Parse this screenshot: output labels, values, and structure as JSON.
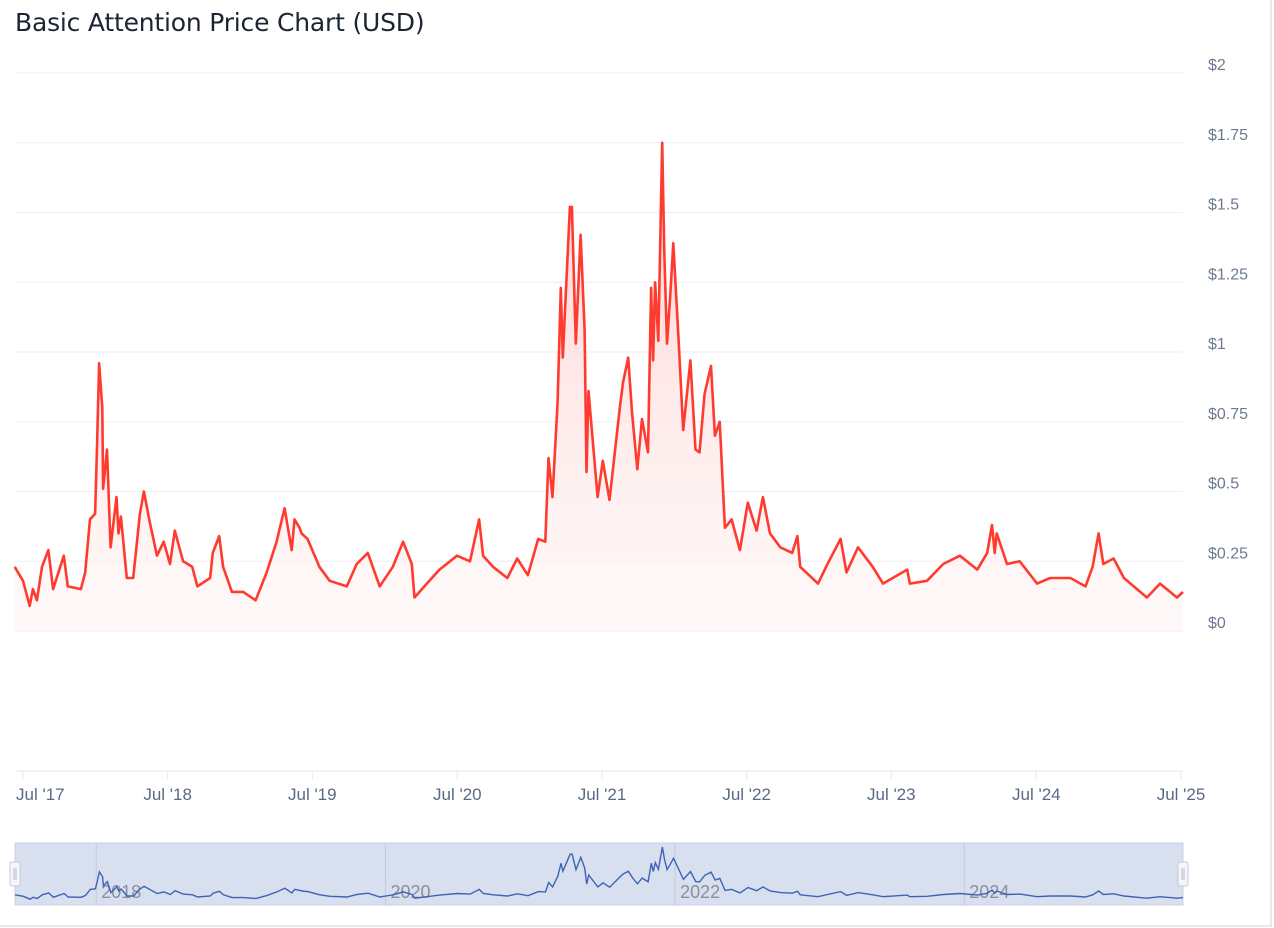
{
  "title": "Basic Attention Price Chart (USD)",
  "chart_data": {
    "type": "area",
    "title": "Basic Attention Price Chart (USD)",
    "xlabel": "",
    "ylabel": "",
    "ylim": [
      0,
      2
    ],
    "xlim": [
      "2017-06-10",
      "2025-07-06"
    ],
    "grid": true,
    "y_ticks": [
      "$0",
      "$0.25",
      "$0.5",
      "$0.75",
      "$1",
      "$1.25",
      "$1.5",
      "$1.75",
      "$2"
    ],
    "y_tick_values": [
      0,
      0.25,
      0.5,
      0.75,
      1,
      1.25,
      1.5,
      1.75,
      2
    ],
    "x_ticks": [
      "Jul '17",
      "Jul '18",
      "Jul '19",
      "Jul '20",
      "Jul '21",
      "Jul '22",
      "Jul '23",
      "Jul '24",
      "Jul '25"
    ],
    "x_tick_dates": [
      "2017-07-01",
      "2018-07-01",
      "2019-07-01",
      "2020-07-01",
      "2021-07-01",
      "2022-07-01",
      "2023-07-01",
      "2024-07-01",
      "2025-07-01"
    ],
    "line_color": "#ff3b30",
    "fill_color": "#ffd9d9",
    "navigator": {
      "labels": [
        "2018",
        "2020",
        "2022",
        "2024"
      ],
      "label_dates": [
        "2018-01-01",
        "2020-01-01",
        "2022-01-01",
        "2024-01-01"
      ],
      "line_color": "#3d63b8",
      "background": "#d8dfee"
    },
    "series": [
      {
        "x": [
          "2017-06-10",
          "2017-07-01",
          "2017-07-18",
          "2017-07-26",
          "2017-08-05",
          "2017-08-18",
          "2017-09-03",
          "2017-09-15",
          "2017-10-12",
          "2017-10-22",
          "2017-11-24",
          "2017-12-05",
          "2017-12-17",
          "2017-12-30",
          "2018-01-04",
          "2018-01-09",
          "2018-01-17",
          "2018-01-19",
          "2018-01-29",
          "2018-02-07",
          "2018-02-22",
          "2018-02-27",
          "2018-03-05",
          "2018-03-20",
          "2018-04-05",
          "2018-04-22",
          "2018-05-02",
          "2018-05-17",
          "2018-06-04",
          "2018-06-21",
          "2018-07-07",
          "2018-07-19",
          "2018-08-09",
          "2018-09-01",
          "2018-09-14",
          "2018-10-16",
          "2018-10-23",
          "2018-11-08",
          "2018-11-18",
          "2018-12-10",
          "2019-01-08",
          "2019-02-08",
          "2019-03-08",
          "2019-04-02",
          "2019-04-22",
          "2019-05-10",
          "2019-05-17",
          "2019-05-30",
          "2019-06-04",
          "2019-06-19",
          "2019-07-19",
          "2019-08-14",
          "2019-09-26",
          "2019-10-21",
          "2019-11-18",
          "2019-12-18",
          "2020-01-20",
          "2020-02-15",
          "2020-03-08",
          "2020-03-15",
          "2020-04-15",
          "2020-05-17",
          "2020-06-30",
          "2020-08-02",
          "2020-08-25",
          "2020-09-04",
          "2020-09-29",
          "2020-11-04",
          "2020-11-29",
          "2020-12-26",
          "2021-01-21",
          "2021-02-08",
          "2021-02-16",
          "2021-02-26",
          "2021-03-11",
          "2021-03-19",
          "2021-03-24",
          "2021-04-11",
          "2021-04-16",
          "2021-04-26",
          "2021-05-08",
          "2021-05-18",
          "2021-05-23",
          "2021-05-28",
          "2021-06-20",
          "2021-07-03",
          "2021-07-20",
          "2021-08-15",
          "2021-08-23",
          "2021-09-05",
          "2021-09-15",
          "2021-09-28",
          "2021-10-10",
          "2021-10-25",
          "2021-11-02",
          "2021-11-07",
          "2021-11-12",
          "2021-11-20",
          "2021-11-30",
          "2021-12-05",
          "2021-12-12",
          "2021-12-20",
          "2021-12-28",
          "2022-01-10",
          "2022-01-22",
          "2022-02-09",
          "2022-02-22",
          "2022-03-04",
          "2022-03-17",
          "2022-04-02",
          "2022-04-12",
          "2022-04-24",
          "2022-05-07",
          "2022-05-24",
          "2022-06-14",
          "2022-07-04",
          "2022-07-26",
          "2022-08-11",
          "2022-08-29",
          "2022-09-24",
          "2022-10-24",
          "2022-11-06",
          "2022-11-13",
          "2022-12-28",
          "2023-01-21",
          "2023-02-23",
          "2023-03-10",
          "2023-04-08",
          "2023-05-15",
          "2023-06-10",
          "2023-08-10",
          "2023-08-17",
          "2023-09-29",
          "2023-11-09",
          "2023-12-21",
          "2024-02-03",
          "2024-02-28",
          "2024-03-11",
          "2024-03-18",
          "2024-03-23",
          "2024-04-18",
          "2024-05-20",
          "2024-07-03",
          "2024-08-05",
          "2024-09-25",
          "2024-11-02",
          "2024-11-20",
          "2024-12-05",
          "2024-12-17",
          "2025-01-12",
          "2025-02-07",
          "2025-04-06",
          "2025-05-09",
          "2025-06-21",
          "2025-07-06"
        ],
        "y": [
          0.23,
          0.18,
          0.09,
          0.15,
          0.11,
          0.23,
          0.29,
          0.15,
          0.27,
          0.16,
          0.15,
          0.21,
          0.4,
          0.42,
          0.67,
          0.96,
          0.8,
          0.51,
          0.65,
          0.3,
          0.48,
          0.35,
          0.41,
          0.19,
          0.19,
          0.42,
          0.5,
          0.39,
          0.27,
          0.32,
          0.24,
          0.36,
          0.25,
          0.23,
          0.16,
          0.19,
          0.28,
          0.34,
          0.23,
          0.14,
          0.14,
          0.11,
          0.21,
          0.32,
          0.44,
          0.29,
          0.4,
          0.37,
          0.35,
          0.33,
          0.23,
          0.18,
          0.16,
          0.24,
          0.28,
          0.16,
          0.23,
          0.32,
          0.24,
          0.12,
          0.17,
          0.22,
          0.27,
          0.25,
          0.4,
          0.27,
          0.23,
          0.19,
          0.26,
          0.2,
          0.33,
          0.32,
          0.62,
          0.48,
          0.82,
          1.23,
          0.98,
          1.52,
          1.52,
          1.03,
          1.42,
          1.08,
          0.57,
          0.86,
          0.48,
          0.61,
          0.47,
          0.8,
          0.89,
          0.98,
          0.78,
          0.58,
          0.76,
          0.64,
          1.23,
          0.97,
          1.25,
          1.04,
          1.75,
          1.37,
          1.03,
          1.2,
          1.39,
          1.05,
          0.72,
          0.97,
          0.65,
          0.64,
          0.85,
          0.95,
          0.7,
          0.75,
          0.37,
          0.4,
          0.29,
          0.46,
          0.36,
          0.48,
          0.35,
          0.3,
          0.28,
          0.34,
          0.23,
          0.17,
          0.24,
          0.33,
          0.21,
          0.3,
          0.23,
          0.17,
          0.22,
          0.17,
          0.18,
          0.24,
          0.27,
          0.22,
          0.28,
          0.38,
          0.28,
          0.35,
          0.24,
          0.25,
          0.17,
          0.19,
          0.19,
          0.16,
          0.23,
          0.35,
          0.24,
          0.26,
          0.19,
          0.12,
          0.17,
          0.12,
          0.14
        ]
      }
    ]
  }
}
